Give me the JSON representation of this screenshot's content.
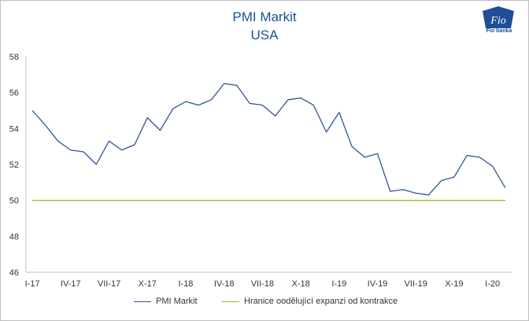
{
  "chart_data": {
    "type": "line",
    "title": "PMI Markit",
    "subtitle": "USA",
    "ylim": [
      46,
      58
    ],
    "yticks": [
      46,
      48,
      50,
      52,
      54,
      56,
      58
    ],
    "x_labels": [
      "I-17",
      "IV-17",
      "VII-17",
      "X-17",
      "I-18",
      "IV-18",
      "VII-18",
      "X-18",
      "I-19",
      "IV-19",
      "VII-19",
      "X-19",
      "I-20"
    ],
    "x_label_every": 3,
    "series": [
      {
        "name": "PMI Markit",
        "color": "#2f5597",
        "values": [
          55.0,
          54.2,
          53.3,
          52.8,
          52.7,
          52.0,
          53.3,
          52.8,
          53.1,
          54.6,
          53.9,
          55.1,
          55.5,
          55.3,
          55.6,
          56.5,
          56.4,
          55.4,
          55.3,
          54.7,
          55.6,
          55.7,
          55.3,
          53.8,
          54.9,
          53.0,
          52.4,
          52.6,
          50.5,
          50.6,
          50.4,
          50.3,
          51.1,
          51.3,
          52.5,
          52.4,
          51.9,
          50.7
        ]
      },
      {
        "name": "Hranice oodělující expanzi od kontrakce",
        "color": "#9bbb2e",
        "values": [
          50,
          50,
          50,
          50,
          50,
          50,
          50,
          50,
          50,
          50,
          50,
          50,
          50,
          50,
          50,
          50,
          50,
          50,
          50,
          50,
          50,
          50,
          50,
          50,
          50,
          50,
          50,
          50,
          50,
          50,
          50,
          50,
          50,
          50,
          50,
          50,
          50,
          50
        ]
      }
    ]
  },
  "logo": {
    "glyph": "Fio",
    "text": "Fio banka"
  }
}
